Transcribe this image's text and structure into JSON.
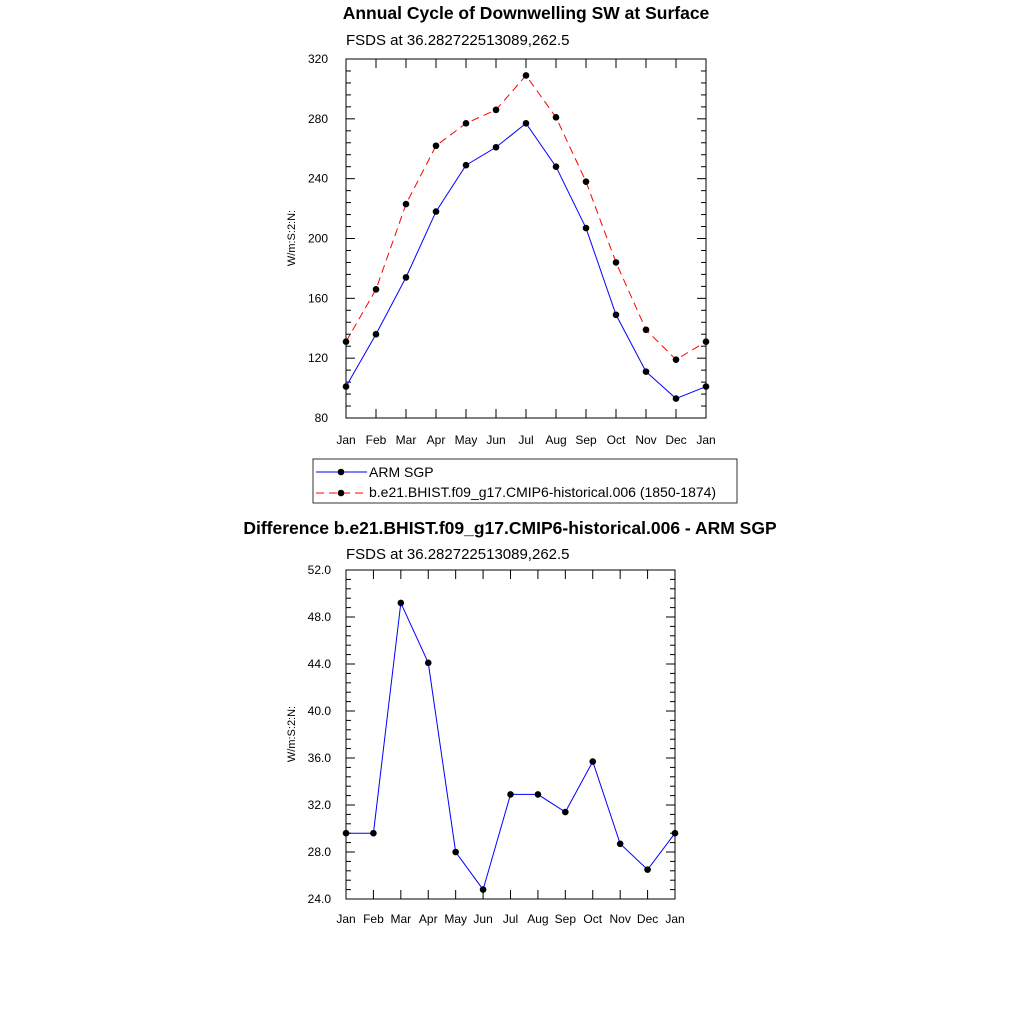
{
  "chart_data": [
    {
      "type": "line",
      "title": "Annual Cycle of Downwelling SW at Surface",
      "subtitle": "FSDS at 36.282722513089,262.5",
      "ylabel": "W/m:S:2:N:",
      "xlabel": "",
      "categories": [
        "Jan",
        "Feb",
        "Mar",
        "Apr",
        "May",
        "Jun",
        "Jul",
        "Aug",
        "Sep",
        "Oct",
        "Nov",
        "Dec",
        "Jan"
      ],
      "ylim": [
        80,
        320
      ],
      "yticks": [
        80,
        120,
        160,
        200,
        240,
        280,
        320
      ],
      "ytick_labels": [
        "80",
        "120",
        "160",
        "200",
        "240",
        "280",
        "320"
      ],
      "grid": false,
      "legend_position": "below",
      "series": [
        {
          "name": "ARM SGP",
          "color": "#0000ff",
          "dash": "solid",
          "values": [
            101,
            136,
            174,
            218,
            249,
            261,
            277,
            248,
            207,
            149,
            111,
            93,
            101
          ]
        },
        {
          "name": "b.e21.BHIST.f09_g17.CMIP6-historical.006 (1850-1874)",
          "color": "#ff0000",
          "dash": "dashed",
          "values": [
            131,
            166,
            223,
            262,
            277,
            286,
            309,
            281,
            238,
            184,
            139,
            119,
            131
          ]
        }
      ]
    },
    {
      "type": "line",
      "title": "Difference b.e21.BHIST.f09_g17.CMIP6-historical.006 - ARM SGP",
      "subtitle": "FSDS at 36.282722513089,262.5",
      "ylabel": "W/m:S:2:N:",
      "xlabel": "",
      "categories": [
        "Jan",
        "Feb",
        "Mar",
        "Apr",
        "May",
        "Jun",
        "Jul",
        "Aug",
        "Sep",
        "Oct",
        "Nov",
        "Dec",
        "Jan"
      ],
      "ylim": [
        24,
        52
      ],
      "yticks": [
        24,
        28,
        32,
        36,
        40,
        44,
        48,
        52
      ],
      "ytick_labels": [
        "24.0",
        "28.0",
        "32.0",
        "36.0",
        "40.0",
        "44.0",
        "48.0",
        "52.0"
      ],
      "grid": false,
      "series": [
        {
          "color": "#0000ff",
          "dash": "solid",
          "values": [
            29.6,
            29.6,
            49.2,
            44.1,
            28.0,
            24.8,
            32.9,
            32.9,
            31.4,
            35.7,
            28.7,
            26.5,
            29.6
          ]
        }
      ]
    }
  ]
}
